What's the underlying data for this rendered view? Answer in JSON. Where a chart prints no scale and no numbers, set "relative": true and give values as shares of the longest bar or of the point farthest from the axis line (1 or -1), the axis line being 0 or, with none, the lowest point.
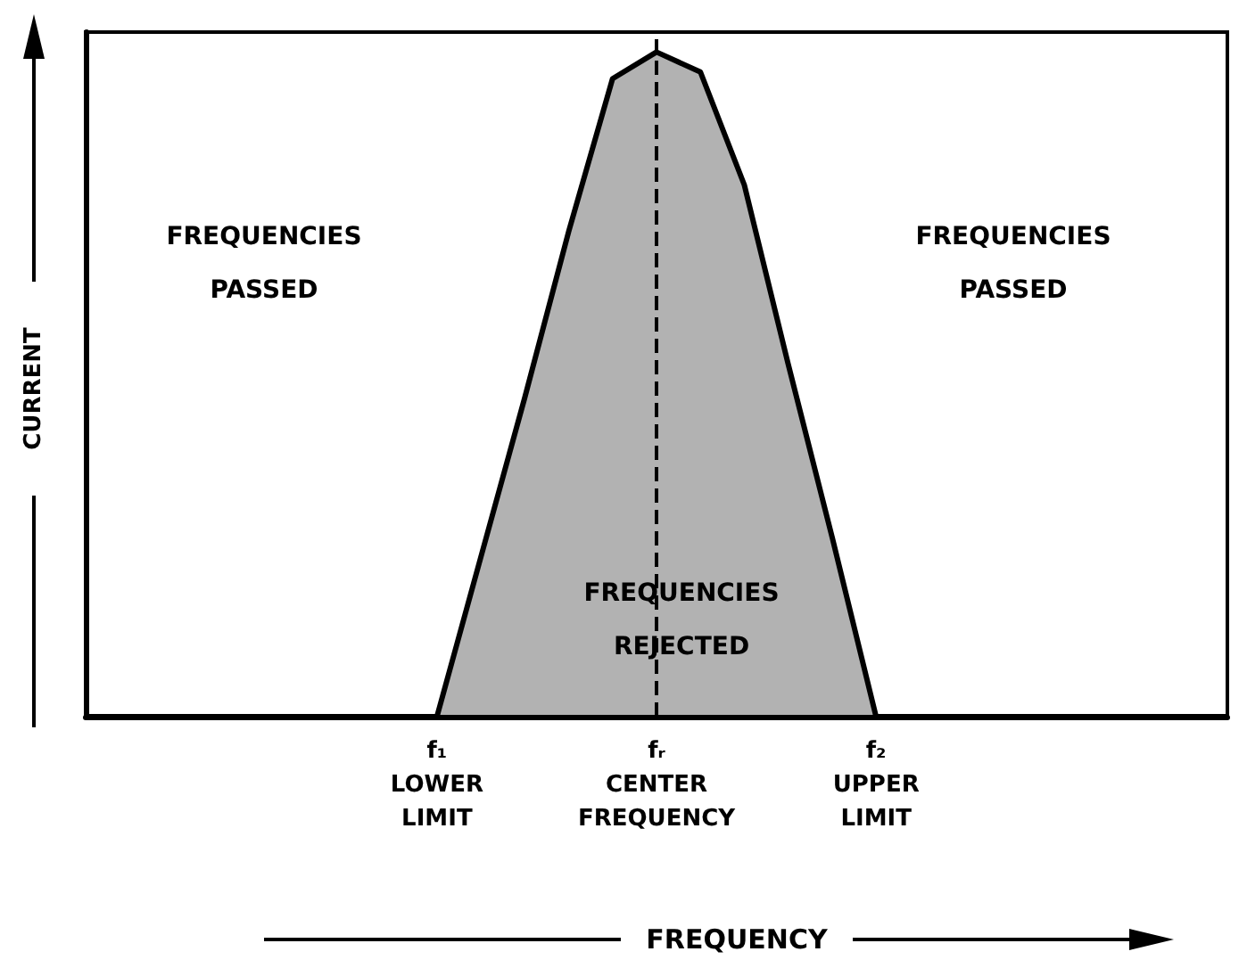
{
  "chart_data": {
    "type": "area",
    "relative": true,
    "xlabel": "FREQUENCY",
    "ylabel": "CURRENT",
    "categories": [
      null,
      null,
      null,
      null,
      null,
      null,
      null,
      null,
      "f₁\nLOWER\nLIMIT",
      null,
      null,
      null,
      null,
      "fᵣ\nCENTER\nFREQUENCY",
      null,
      null,
      null,
      null,
      "f₂\nUPPER\nLIMIT",
      null,
      null,
      null,
      null,
      null,
      null,
      null,
      null
    ],
    "series": [
      {
        "color": "#000000",
        "values": [
          0,
          0,
          0,
          0,
          0,
          0,
          0,
          0,
          0,
          0.24,
          0.48,
          0.73,
          0.96,
          1,
          0.97,
          0.8,
          0.53,
          0.27,
          0,
          0,
          0,
          0,
          0,
          0,
          0,
          0,
          0
        ]
      }
    ],
    "ref_lines": [
      {
        "axis": "x",
        "value": "fᵣ\nCENTER\nFREQUENCY",
        "line_style": "dashed"
      }
    ],
    "annotations": [
      "FREQUENCIES\nPASSED",
      "FREQUENCIES\nREJECTED",
      "FREQUENCIES\nPASSED"
    ],
    "tick_labels": "x",
    "grid": false,
    "marker": "none"
  }
}
